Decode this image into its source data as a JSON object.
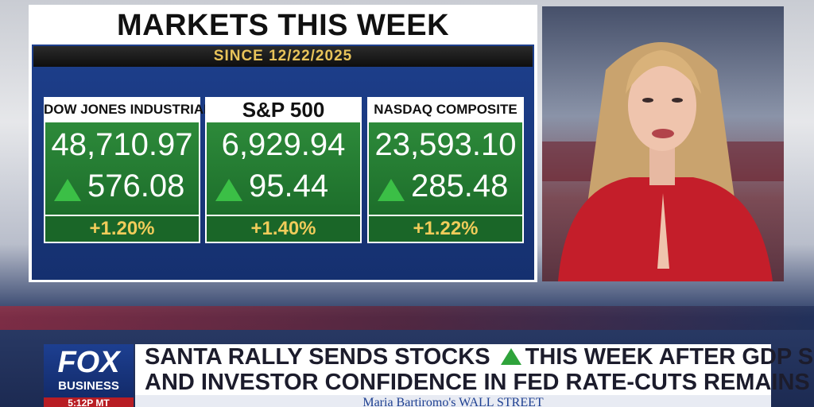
{
  "panel": {
    "title": "MARKETS THIS WEEK",
    "subtitle": "SINCE 12/22/2025",
    "cards": [
      {
        "name": "DOW JONES INDUSTRIALS",
        "value": "48,710.97",
        "change": "576.08",
        "percent": "+1.20%"
      },
      {
        "name": "S&P 500",
        "value": "6,929.94",
        "change": "95.44",
        "percent": "+1.40%"
      },
      {
        "name": "NASDAQ COMPOSITE",
        "value": "23,593.10",
        "change": "285.48",
        "percent": "+1.22%"
      }
    ]
  },
  "lower_third": {
    "logo": [
      "FOX",
      "BUSINESS"
    ],
    "time": "5:12P MT",
    "headline": [
      "SANTA RALLY SENDS STOCKS",
      "THIS WEEK AFTER GDP SURGES",
      "AND INVESTOR CONFIDENCE IN FED RATE-CUTS REMAINS HIGH"
    ],
    "show": "Maria Bartiromo's WALL STREET"
  }
}
